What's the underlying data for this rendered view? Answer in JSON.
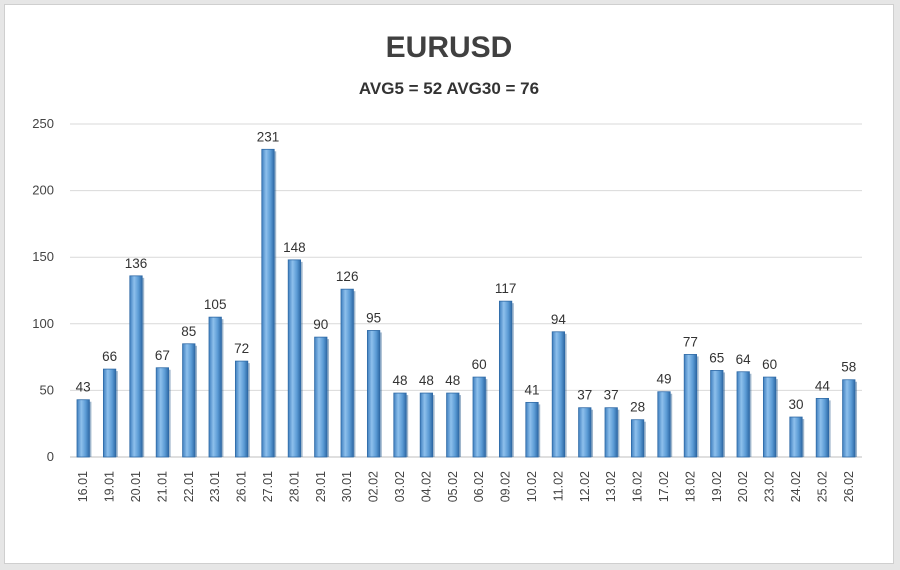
{
  "chart_data": {
    "type": "bar",
    "title": "EURUSD",
    "subtitle": "AVG5 = 52 AVG30 = 76",
    "xlabel": "",
    "ylabel": "",
    "ylim": [
      0,
      250
    ],
    "yticks": [
      0,
      50,
      100,
      150,
      200,
      250
    ],
    "grid": true,
    "categories": [
      "16.01",
      "19.01",
      "20.01",
      "21.01",
      "22.01",
      "23.01",
      "26.01",
      "27.01",
      "28.01",
      "29.01",
      "30.01",
      "02.02",
      "03.02",
      "04.02",
      "05.02",
      "06.02",
      "09.02",
      "10.02",
      "11.02",
      "12.02",
      "13.02",
      "16.02",
      "17.02",
      "18.02",
      "19.02",
      "20.02",
      "23.02",
      "24.02",
      "25.02",
      "26.02"
    ],
    "values": [
      43,
      66,
      136,
      67,
      85,
      105,
      72,
      231,
      148,
      90,
      126,
      95,
      48,
      48,
      48,
      60,
      117,
      41,
      94,
      37,
      37,
      28,
      49,
      77,
      65,
      64,
      60,
      30,
      44,
      58
    ],
    "bar_color": "#5b9bd5"
  }
}
